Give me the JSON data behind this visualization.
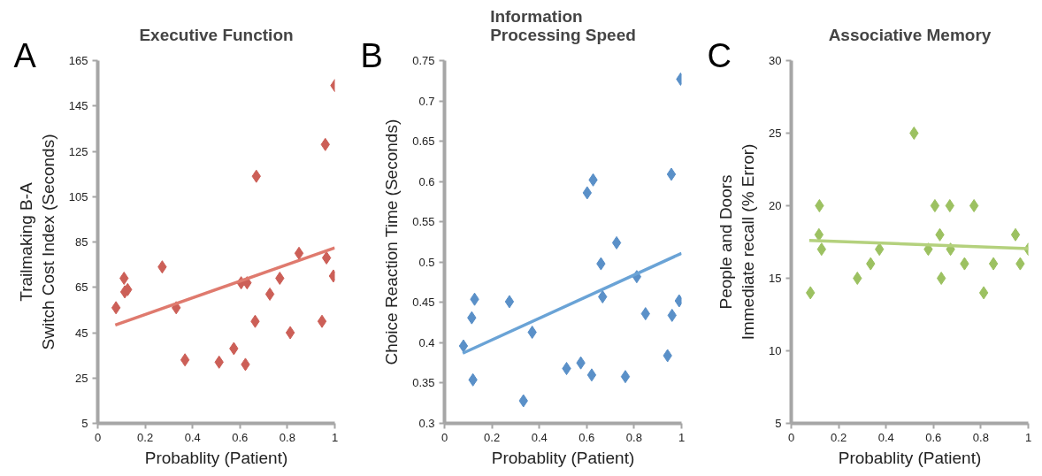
{
  "chart_data": [
    {
      "type": "scatter",
      "title": "Executive Function",
      "xlabel": "Probablity (Patient)",
      "ylabel": "Trailmaking B-A\nSwitch Cost Index (Seconds)",
      "annotations": [
        "A"
      ],
      "xlim": [
        0,
        1
      ],
      "xticks": [
        0,
        0.2,
        0.4,
        0.6,
        0.8,
        1
      ],
      "ylim": [
        5,
        165
      ],
      "yticks": [
        5,
        25,
        45,
        65,
        85,
        105,
        125,
        145,
        165
      ],
      "grid": false,
      "series": [
        {
          "marker": "diamond",
          "color": "#cc5f57",
          "x": [
            0.077,
            0.111,
            0.114,
            0.126,
            0.272,
            0.331,
            0.368,
            0.512,
            0.574,
            0.605,
            0.63,
            0.623,
            0.664,
            0.669,
            0.726,
            0.768,
            0.812,
            0.849,
            0.946,
            0.96,
            0.965,
            0.994,
            1.0
          ],
          "values": [
            56,
            69,
            63,
            64,
            74,
            56,
            33,
            32,
            38,
            67,
            67,
            31,
            50,
            114,
            62,
            69,
            45,
            80,
            50,
            128,
            78,
            70,
            154
          ]
        },
        {
          "type": "line",
          "color": "#df7a6e",
          "x": [
            0.074,
            1.0
          ],
          "values": [
            48.4,
            82.4
          ]
        }
      ]
    },
    {
      "type": "scatter",
      "title": "Information\nProcessing Speed",
      "xlabel": "Probablity (Patient)",
      "ylabel": "Choice Reaction Time (Seconds)",
      "annotations": [
        "B"
      ],
      "xlim": [
        0,
        1
      ],
      "xticks": [
        0,
        0.2,
        0.4,
        0.6,
        0.8,
        1
      ],
      "ylim": [
        0.3,
        0.75
      ],
      "yticks": [
        0.3,
        0.35,
        0.4,
        0.45,
        0.5,
        0.55,
        0.6,
        0.65,
        0.7,
        0.75
      ],
      "grid": false,
      "series": [
        {
          "marker": "diamond",
          "color": "#5a90c8",
          "x": [
            0.08,
            0.115,
            0.127,
            0.12,
            0.274,
            0.333,
            0.37,
            0.515,
            0.575,
            0.602,
            0.627,
            0.621,
            0.66,
            0.667,
            0.726,
            0.763,
            0.811,
            0.848,
            0.941,
            0.957,
            0.96,
            0.99,
            0.996
          ],
          "values": [
            0.396,
            0.431,
            0.454,
            0.354,
            0.451,
            0.328,
            0.413,
            0.368,
            0.375,
            0.586,
            0.602,
            0.36,
            0.498,
            0.457,
            0.524,
            0.358,
            0.482,
            0.436,
            0.384,
            0.609,
            0.434,
            0.452,
            0.727
          ]
        },
        {
          "type": "line",
          "color": "#6aa3d6",
          "x": [
            0.077,
            1.0
          ],
          "values": [
            0.387,
            0.511
          ]
        }
      ]
    },
    {
      "type": "scatter",
      "title": "Associative Memory",
      "xlabel": "Probablity (Patient)",
      "ylabel": "People and Doors\nImmediate recall (% Error)",
      "annotations": [
        "C"
      ],
      "xlim": [
        0,
        1
      ],
      "xticks": [
        0,
        0.2,
        0.4,
        0.6,
        0.8,
        1
      ],
      "ylim": [
        5,
        30
      ],
      "yticks": [
        5,
        10,
        15,
        20,
        25,
        30
      ],
      "grid": false,
      "series": [
        {
          "marker": "diamond",
          "color": "#9cc161",
          "x": [
            0.081,
            0.119,
            0.117,
            0.128,
            0.279,
            0.335,
            0.372,
            0.518,
            0.578,
            0.606,
            0.627,
            0.633,
            0.669,
            0.672,
            0.731,
            0.771,
            0.812,
            0.853,
            0.946,
            0.966,
            1.0
          ],
          "values": [
            14,
            20,
            18,
            17,
            15,
            16,
            17,
            25,
            17,
            20,
            18,
            15,
            20,
            17,
            16,
            20,
            14,
            16,
            18,
            16,
            17
          ]
        },
        {
          "type": "line",
          "color": "#b4d17d",
          "x": [
            0.076,
            1.0
          ],
          "values": [
            17.61,
            17.04
          ]
        }
      ]
    }
  ]
}
